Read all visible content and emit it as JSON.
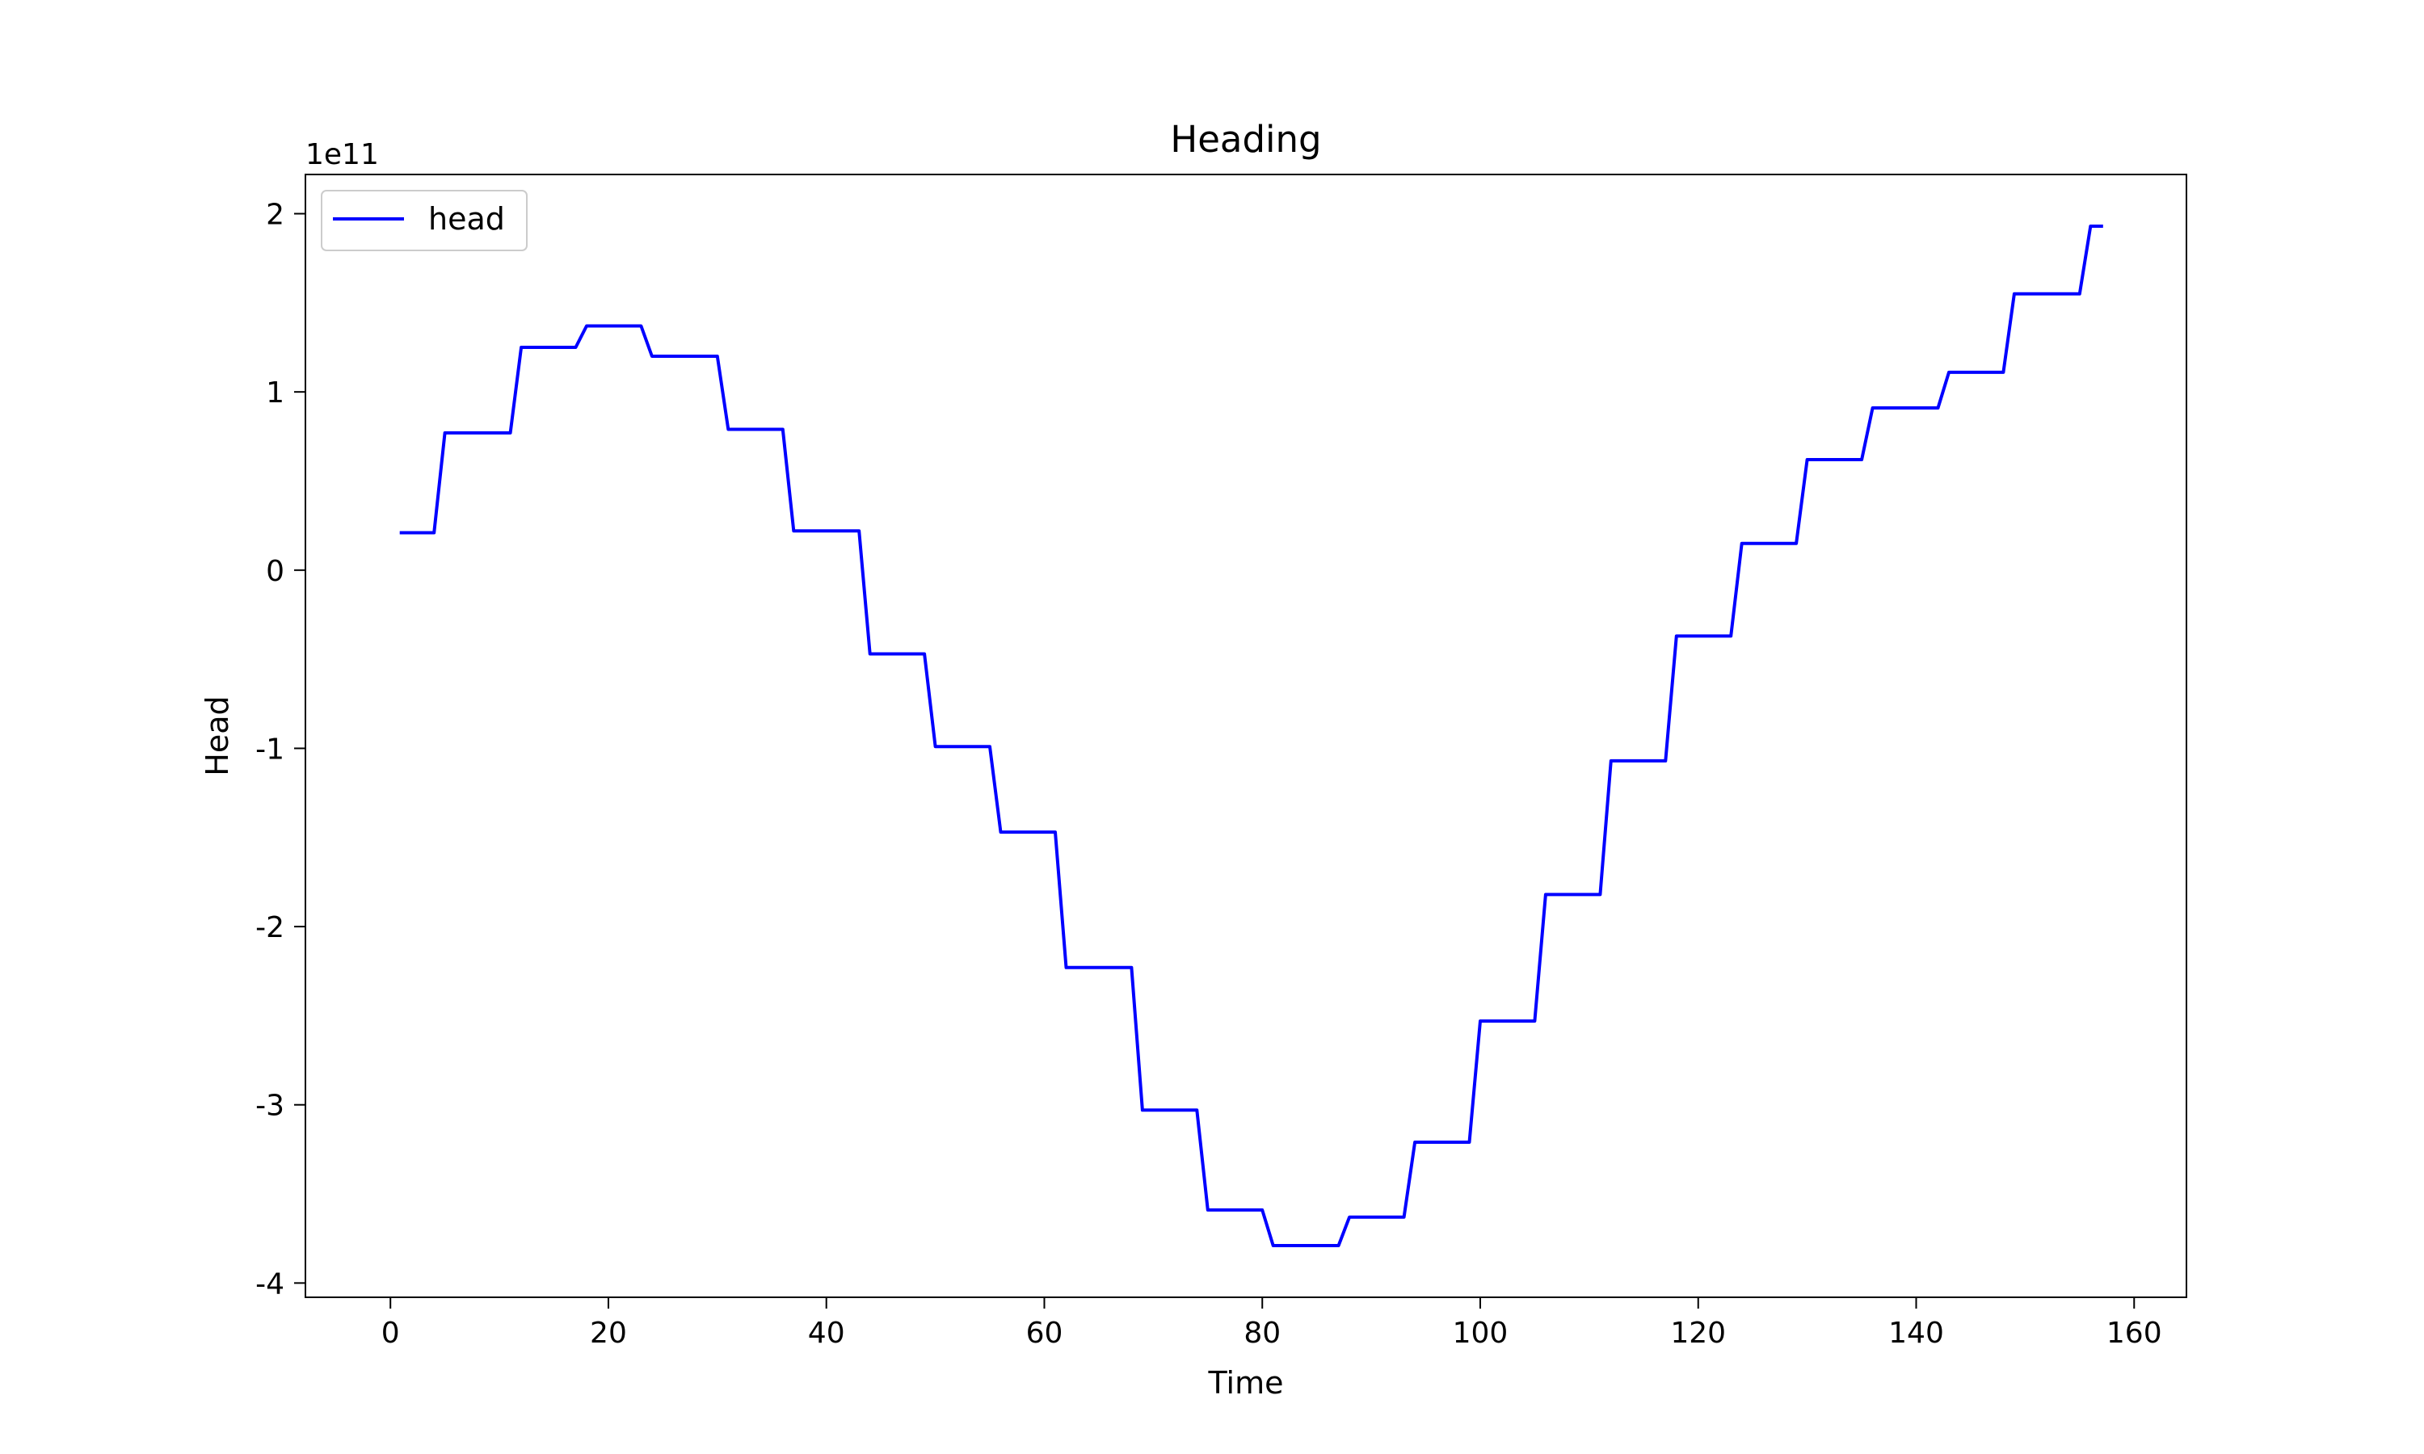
{
  "chart_data": {
    "type": "line",
    "title": "Heading",
    "xlabel": "Time",
    "ylabel": "Head",
    "offset_label": "1e11",
    "xlim": [
      -7.8,
      164.8
    ],
    "ylim": [
      -4.08,
      2.22
    ],
    "xticks": [
      0,
      20,
      40,
      60,
      80,
      100,
      120,
      140,
      160
    ],
    "yticks": [
      -4,
      -3,
      -2,
      -1,
      0,
      1,
      2
    ],
    "ytick_labels": [
      "-4",
      "-3",
      "-2",
      "-1",
      "0",
      "1",
      "2"
    ],
    "grid": false,
    "legend_position": "upper-left",
    "series": [
      {
        "name": "head",
        "color": "#0000ff",
        "x": [
          1,
          4,
          5,
          11,
          12,
          17,
          18,
          23,
          24,
          30,
          31,
          36,
          37,
          43,
          44,
          49,
          50,
          55,
          56,
          61,
          62,
          68,
          69,
          74,
          75,
          80,
          81,
          87,
          88,
          93,
          94,
          99,
          100,
          105,
          106,
          111,
          112,
          117,
          118,
          123,
          124,
          129,
          130,
          135,
          136,
          142,
          143,
          148,
          149,
          155,
          156,
          157
        ],
        "y": [
          0.21,
          0.21,
          0.77,
          0.77,
          1.25,
          1.25,
          1.37,
          1.37,
          1.2,
          1.2,
          0.79,
          0.79,
          0.22,
          0.22,
          -0.47,
          -0.47,
          -0.99,
          -0.99,
          -1.47,
          -1.47,
          -2.23,
          -2.23,
          -3.03,
          -3.03,
          -3.59,
          -3.59,
          -3.79,
          -3.79,
          -3.63,
          -3.63,
          -3.21,
          -3.21,
          -2.53,
          -2.53,
          -1.82,
          -1.82,
          -1.07,
          -1.07,
          -0.37,
          -0.37,
          0.15,
          0.15,
          0.62,
          0.62,
          0.91,
          0.91,
          1.11,
          1.11,
          1.55,
          1.55,
          1.93,
          1.93
        ]
      }
    ]
  }
}
